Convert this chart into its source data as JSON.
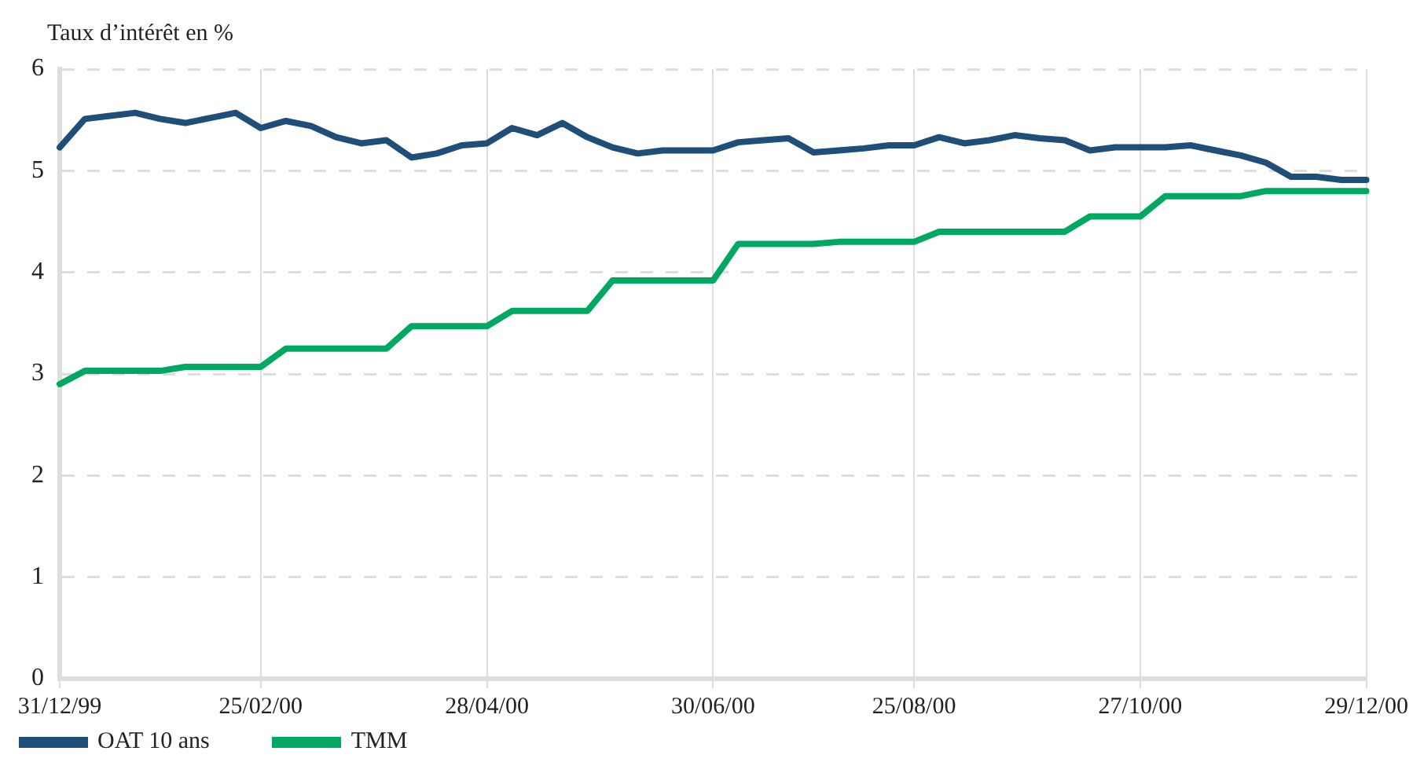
{
  "chart_data": {
    "type": "line",
    "ylabel": "Taux d’intérêt en %",
    "categories": [
      "31/12/99",
      null,
      null,
      null,
      null,
      null,
      null,
      null,
      "25/02/00",
      null,
      null,
      null,
      null,
      null,
      null,
      null,
      null,
      "28/04/00",
      null,
      null,
      null,
      null,
      null,
      null,
      null,
      null,
      "30/06/00",
      null,
      null,
      null,
      null,
      null,
      null,
      null,
      "25/08/00",
      null,
      null,
      null,
      null,
      null,
      null,
      null,
      null,
      "27/10/00",
      null,
      null,
      null,
      null,
      null,
      null,
      null,
      null,
      "29/12/00"
    ],
    "series": [
      {
        "name": "OAT 10 ans",
        "color": "#1f4e79",
        "values": [
          5.23,
          5.51,
          5.54,
          5.57,
          5.51,
          5.47,
          5.52,
          5.57,
          5.42,
          5.49,
          5.44,
          5.33,
          5.27,
          5.3,
          5.13,
          5.17,
          5.25,
          5.27,
          5.42,
          5.35,
          5.47,
          5.33,
          5.23,
          5.17,
          5.2,
          5.2,
          5.2,
          5.28,
          5.3,
          5.32,
          5.18,
          5.2,
          5.22,
          5.25,
          5.25,
          5.33,
          5.27,
          5.3,
          5.35,
          5.32,
          5.3,
          5.2,
          5.23,
          5.23,
          5.23,
          5.25,
          5.2,
          5.15,
          5.08,
          4.94,
          4.94,
          4.91,
          4.91
        ]
      },
      {
        "name": "TMM",
        "color": "#00a862",
        "values": [
          2.9,
          3.03,
          3.03,
          3.03,
          3.03,
          3.07,
          3.07,
          3.07,
          3.07,
          3.25,
          3.25,
          3.25,
          3.25,
          3.25,
          3.47,
          3.47,
          3.47,
          3.47,
          3.62,
          3.62,
          3.62,
          3.62,
          3.92,
          3.92,
          3.92,
          3.92,
          3.92,
          4.28,
          4.28,
          4.28,
          4.28,
          4.3,
          4.3,
          4.3,
          4.3,
          4.4,
          4.4,
          4.4,
          4.4,
          4.4,
          4.4,
          4.55,
          4.55,
          4.55,
          4.75,
          4.75,
          4.75,
          4.75,
          4.8,
          4.8,
          4.8,
          4.8,
          4.8
        ]
      }
    ],
    "ylim": [
      0,
      6
    ],
    "yticks": [
      0,
      1,
      2,
      3,
      4,
      5,
      6
    ],
    "grid": true,
    "legend": "bottom left",
    "marker": "none",
    "line_style": "solid"
  }
}
